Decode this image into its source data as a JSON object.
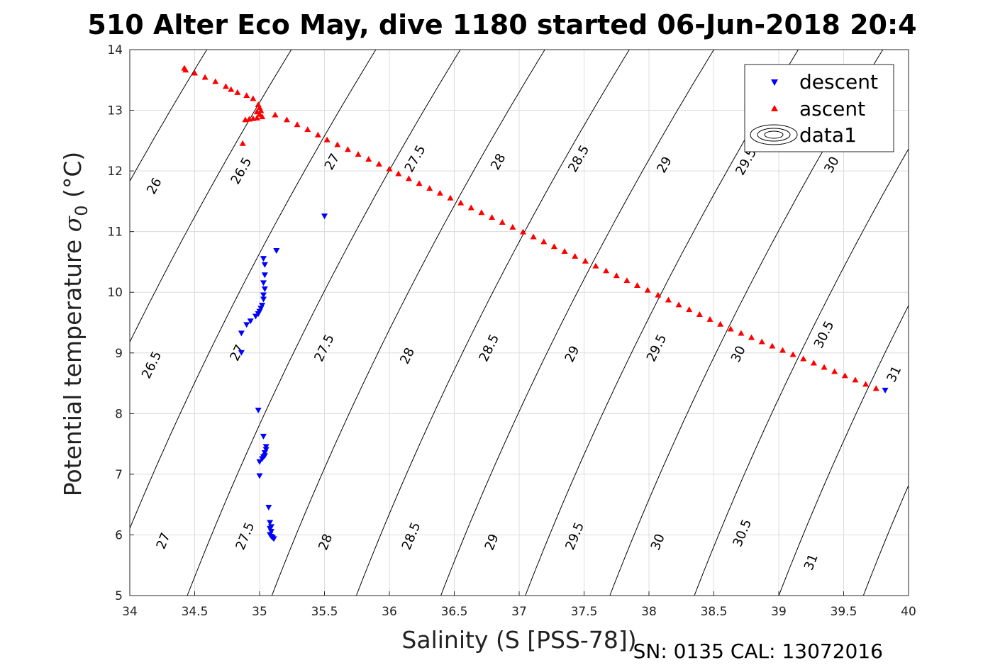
{
  "title": "510 Alter Eco May, dive 1180 started 06-Jun-2018 20:4",
  "footnote": "SN: 0135  CAL: 13072016",
  "colors": {
    "descent": "#0000ff",
    "ascent": "#ff0000",
    "contour": "#000000",
    "grid": "#dcdcdc"
  },
  "chart_data": {
    "type": "scatter",
    "xlabel": "Salinity (S [PSS-78])",
    "ylabel_main": "Potential temperature ",
    "ylabel_sym": "σ",
    "ylabel_sub": "0",
    "ylabel_unit": " (°C)",
    "xlim": [
      34,
      40
    ],
    "ylim": [
      5,
      14
    ],
    "xticks": [
      34,
      34.5,
      35,
      35.5,
      36,
      36.5,
      37,
      37.5,
      38,
      38.5,
      39,
      39.5,
      40
    ],
    "yticks": [
      5,
      6,
      7,
      8,
      9,
      10,
      11,
      12,
      13,
      14
    ],
    "grid": true,
    "legend": {
      "location": "top-right",
      "entries": [
        "descent",
        "ascent",
        "data1"
      ]
    },
    "contours": {
      "line_levels": [
        25.5,
        26,
        26.5,
        27,
        27.5,
        28,
        28.5,
        29,
        29.5,
        30,
        30.5,
        31,
        31.5,
        32
      ],
      "labels": [
        {
          "text": "26",
          "s": 34.19,
          "t": 11.75
        },
        {
          "text": "26.5",
          "s": 34.86,
          "t": 12.0
        },
        {
          "text": "27",
          "s": 35.56,
          "t": 12.15
        },
        {
          "text": "27.5",
          "s": 36.2,
          "t": 12.2
        },
        {
          "text": "28",
          "s": 36.84,
          "t": 12.15
        },
        {
          "text": "28.5",
          "s": 37.46,
          "t": 12.2
        },
        {
          "text": "29",
          "s": 38.12,
          "t": 12.1
        },
        {
          "text": "29.5",
          "s": 38.75,
          "t": 12.15
        },
        {
          "text": "30",
          "s": 39.41,
          "t": 12.1
        },
        {
          "text": "26.5",
          "s": 34.17,
          "t": 8.8
        },
        {
          "text": "27",
          "s": 34.83,
          "t": 9.0
        },
        {
          "text": "27.5",
          "s": 35.5,
          "t": 9.08
        },
        {
          "text": "28",
          "s": 36.14,
          "t": 8.95
        },
        {
          "text": "28.5",
          "s": 36.77,
          "t": 9.08
        },
        {
          "text": "29",
          "s": 37.41,
          "t": 8.98
        },
        {
          "text": "29.5",
          "s": 38.06,
          "t": 9.08
        },
        {
          "text": "30",
          "s": 38.69,
          "t": 8.98
        },
        {
          "text": "30.5",
          "s": 39.35,
          "t": 9.3
        },
        {
          "text": "31",
          "s": 39.89,
          "t": 8.65
        },
        {
          "text": "27",
          "s": 34.26,
          "t": 5.9
        },
        {
          "text": "27.5",
          "s": 34.89,
          "t": 5.98
        },
        {
          "text": "28",
          "s": 35.51,
          "t": 5.88
        },
        {
          "text": "28.5",
          "s": 36.17,
          "t": 5.98
        },
        {
          "text": "29",
          "s": 36.79,
          "t": 5.88
        },
        {
          "text": "29.5",
          "s": 37.43,
          "t": 5.98
        },
        {
          "text": "30",
          "s": 38.07,
          "t": 5.88
        },
        {
          "text": "30.5",
          "s": 38.72,
          "t": 6.03
        },
        {
          "text": "31",
          "s": 39.25,
          "t": 5.55
        }
      ]
    },
    "series": [
      {
        "name": "descent",
        "marker": "triangle-down",
        "color": "#0000ff",
        "points": [
          [
            35.5,
            11.25
          ],
          [
            35.13,
            10.68
          ],
          [
            35.03,
            10.55
          ],
          [
            35.04,
            10.45
          ],
          [
            35.04,
            10.28
          ],
          [
            35.03,
            10.15
          ],
          [
            35.04,
            10.05
          ],
          [
            35.03,
            9.95
          ],
          [
            35.03,
            9.88
          ],
          [
            35.02,
            9.78
          ],
          [
            35.01,
            9.73
          ],
          [
            35.0,
            9.68
          ],
          [
            34.99,
            9.64
          ],
          [
            34.97,
            9.6
          ],
          [
            34.93,
            9.52
          ],
          [
            34.9,
            9.46
          ],
          [
            34.86,
            9.32
          ],
          [
            34.86,
            9.0
          ],
          [
            34.99,
            8.05
          ],
          [
            35.03,
            7.62
          ],
          [
            35.05,
            7.45
          ],
          [
            35.05,
            7.4
          ],
          [
            35.04,
            7.35
          ],
          [
            35.04,
            7.3
          ],
          [
            35.03,
            7.28
          ],
          [
            35.02,
            7.25
          ],
          [
            35.0,
            7.2
          ],
          [
            35.0,
            6.97
          ],
          [
            35.07,
            6.45
          ],
          [
            35.08,
            6.2
          ],
          [
            35.09,
            6.13
          ],
          [
            35.08,
            6.1
          ],
          [
            35.09,
            6.05
          ],
          [
            35.08,
            6.0
          ],
          [
            35.09,
            5.97
          ],
          [
            35.1,
            5.95
          ],
          [
            35.11,
            5.93
          ],
          [
            39.82,
            8.38
          ]
        ]
      },
      {
        "name": "ascent",
        "marker": "triangle-up",
        "color": "#ff0000",
        "points": [
          [
            34.42,
            13.7
          ],
          [
            34.43,
            13.67
          ],
          [
            34.5,
            13.62
          ],
          [
            34.58,
            13.55
          ],
          [
            34.66,
            13.48
          ],
          [
            34.74,
            13.4
          ],
          [
            34.78,
            13.35
          ],
          [
            34.83,
            13.3
          ],
          [
            34.9,
            13.25
          ],
          [
            34.95,
            13.2
          ],
          [
            34.99,
            13.1
          ],
          [
            35.0,
            13.05
          ],
          [
            35.01,
            13.0
          ],
          [
            34.98,
            12.98
          ],
          [
            35.0,
            12.94
          ],
          [
            35.02,
            12.9
          ],
          [
            34.98,
            12.88
          ],
          [
            34.95,
            12.87
          ],
          [
            34.92,
            12.86
          ],
          [
            34.89,
            12.85
          ],
          [
            34.87,
            12.46
          ],
          [
            35.12,
            12.93
          ],
          [
            35.21,
            12.85
          ],
          [
            35.29,
            12.77
          ],
          [
            35.37,
            12.69
          ],
          [
            35.45,
            12.6
          ],
          [
            35.52,
            12.52
          ],
          [
            35.6,
            12.44
          ],
          [
            35.68,
            12.36
          ],
          [
            35.76,
            12.28
          ],
          [
            35.84,
            12.2
          ],
          [
            35.92,
            12.12
          ],
          [
            36.0,
            12.04
          ],
          [
            36.07,
            11.96
          ],
          [
            36.15,
            11.88
          ],
          [
            36.23,
            11.8
          ],
          [
            36.31,
            11.72
          ],
          [
            36.39,
            11.64
          ],
          [
            36.47,
            11.56
          ],
          [
            36.55,
            11.48
          ],
          [
            36.63,
            11.4
          ],
          [
            36.71,
            11.32
          ],
          [
            36.79,
            11.24
          ],
          [
            36.87,
            11.16
          ],
          [
            36.95,
            11.08
          ],
          [
            37.03,
            11.0
          ],
          [
            37.11,
            10.92
          ],
          [
            37.19,
            10.84
          ],
          [
            37.27,
            10.76
          ],
          [
            37.35,
            10.68
          ],
          [
            37.43,
            10.6
          ],
          [
            37.51,
            10.52
          ],
          [
            37.59,
            10.44
          ],
          [
            37.67,
            10.36
          ],
          [
            37.75,
            10.28
          ],
          [
            37.83,
            10.2
          ],
          [
            37.91,
            10.12
          ],
          [
            37.99,
            10.04
          ],
          [
            38.07,
            9.96
          ],
          [
            38.15,
            9.88
          ],
          [
            38.23,
            9.8
          ],
          [
            38.31,
            9.72
          ],
          [
            38.39,
            9.64
          ],
          [
            38.47,
            9.56
          ],
          [
            38.55,
            9.48
          ],
          [
            38.63,
            9.4
          ],
          [
            38.71,
            9.33
          ],
          [
            38.79,
            9.26
          ],
          [
            38.87,
            9.19
          ],
          [
            38.95,
            9.12
          ],
          [
            39.03,
            9.05
          ],
          [
            39.11,
            8.98
          ],
          [
            39.19,
            8.91
          ],
          [
            39.27,
            8.84
          ],
          [
            39.35,
            8.77
          ],
          [
            39.43,
            8.7
          ],
          [
            39.51,
            8.63
          ],
          [
            39.59,
            8.56
          ],
          [
            39.67,
            8.49
          ],
          [
            39.75,
            8.42
          ]
        ]
      }
    ]
  }
}
